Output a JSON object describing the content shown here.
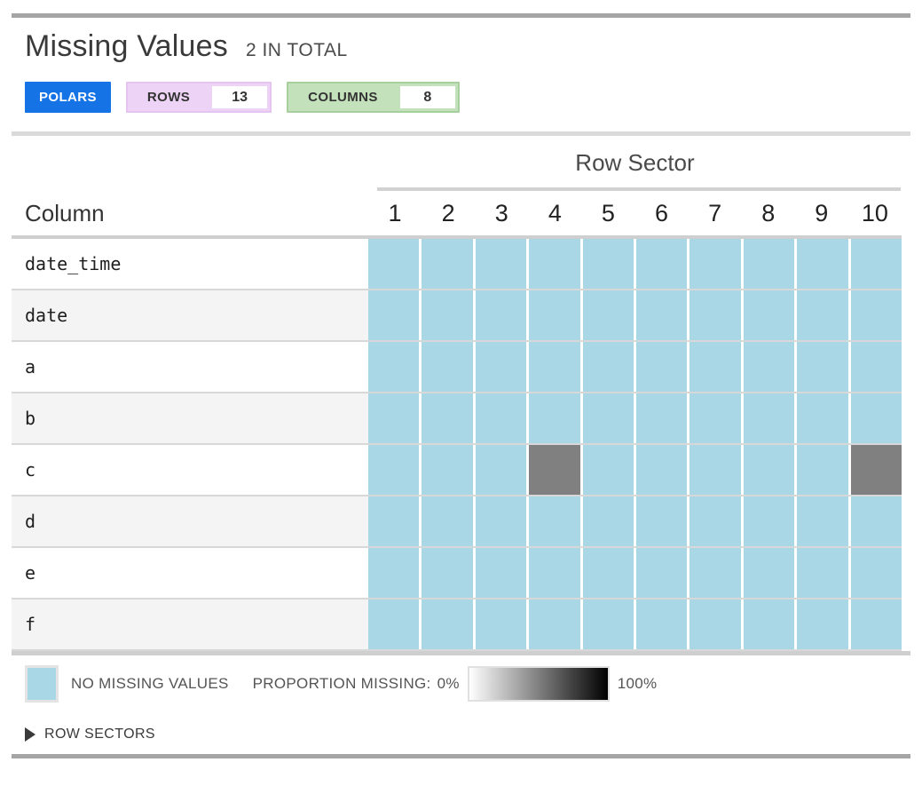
{
  "header": {
    "title": "Missing Values",
    "subtitle": "2 IN TOTAL",
    "badges": {
      "engine": "POLARS",
      "rows_label": "ROWS",
      "rows_value": "13",
      "columns_label": "COLUMNS",
      "columns_value": "8"
    }
  },
  "chart_data": {
    "type": "heatmap",
    "title": "Row Sector",
    "row_axis_label": "Column",
    "x_labels": [
      "1",
      "2",
      "3",
      "4",
      "5",
      "6",
      "7",
      "8",
      "9",
      "10"
    ],
    "total_missing": 2,
    "rows": [
      {
        "name": "date_time",
        "proportions": [
          0,
          0,
          0,
          0,
          0,
          0,
          0,
          0,
          0,
          0
        ]
      },
      {
        "name": "date",
        "proportions": [
          0,
          0,
          0,
          0,
          0,
          0,
          0,
          0,
          0,
          0
        ]
      },
      {
        "name": "a",
        "proportions": [
          0,
          0,
          0,
          0,
          0,
          0,
          0,
          0,
          0,
          0
        ]
      },
      {
        "name": "b",
        "proportions": [
          0,
          0,
          0,
          0,
          0,
          0,
          0,
          0,
          0,
          0
        ]
      },
      {
        "name": "c",
        "proportions": [
          0,
          0,
          0,
          0.5,
          0,
          0,
          0,
          0,
          0,
          0.5
        ]
      },
      {
        "name": "d",
        "proportions": [
          0,
          0,
          0,
          0,
          0,
          0,
          0,
          0,
          0,
          0
        ]
      },
      {
        "name": "e",
        "proportions": [
          0,
          0,
          0,
          0,
          0,
          0,
          0,
          0,
          0,
          0
        ]
      },
      {
        "name": "f",
        "proportions": [
          0,
          0,
          0,
          0,
          0,
          0,
          0,
          0,
          0,
          0
        ]
      }
    ],
    "colors": {
      "no_missing": "#a9d7e6",
      "missing_scale_min": "#ffffff",
      "missing_scale_max": "#000000"
    },
    "legend_position": "bottom"
  },
  "legend": {
    "no_missing_label": "NO MISSING VALUES",
    "proportion_label": "PROPORTION MISSING:",
    "min_label": "0%",
    "max_label": "100%"
  },
  "footer": {
    "row_sectors_label": "ROW SECTORS"
  }
}
